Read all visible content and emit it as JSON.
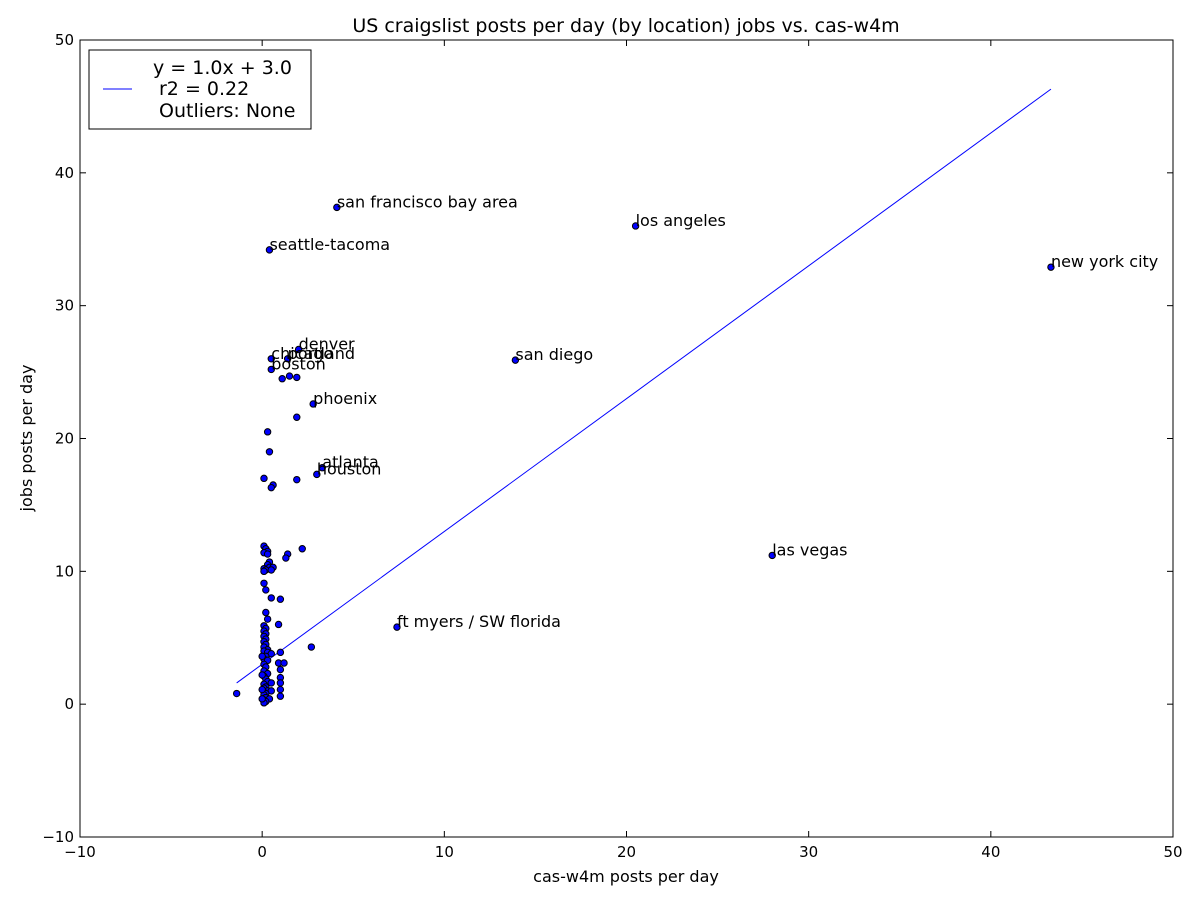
{
  "chart_data": {
    "type": "scatter",
    "title": "US craigslist posts per day (by location) jobs vs. cas-w4m",
    "xlabel": "cas-w4m posts per day",
    "ylabel": "jobs posts per day",
    "xlim": [
      -10,
      50
    ],
    "ylim": [
      -10,
      50
    ],
    "xticks": [
      -10,
      0,
      10,
      20,
      30,
      40,
      50
    ],
    "yticks": [
      -10,
      0,
      10,
      20,
      30,
      40,
      50
    ],
    "tick_labels_x": [
      "−10",
      "0",
      "10",
      "20",
      "30",
      "40",
      "50"
    ],
    "tick_labels_y": [
      "−10",
      "0",
      "10",
      "20",
      "30",
      "40",
      "50"
    ],
    "grid": false,
    "legend": {
      "placement": "top-left",
      "lines": [
        "y = 1.0x + 3.0",
        "r2 = 0.22",
        "Outliers: None"
      ]
    },
    "colors": {
      "points": "#0000ff",
      "point_edge": "#000000",
      "fit_line": "#0000ff"
    },
    "fit_line": {
      "slope": 1.0,
      "intercept": 3.0,
      "x_start": -1.4,
      "x_end": 43.3
    },
    "labeled_points": [
      {
        "label": "san francisco bay area",
        "x": 4.1,
        "y": 37.4
      },
      {
        "label": "los angeles",
        "x": 20.5,
        "y": 36.0
      },
      {
        "label": "seattle-tacoma",
        "x": 0.4,
        "y": 34.2
      },
      {
        "label": "new york city",
        "x": 43.3,
        "y": 32.9
      },
      {
        "label": "denver",
        "x": 2.0,
        "y": 26.7
      },
      {
        "label": "chicago",
        "x": 0.5,
        "y": 26.0
      },
      {
        "label": "portland",
        "x": 1.4,
        "y": 26.0
      },
      {
        "label": "san diego",
        "x": 13.9,
        "y": 25.9
      },
      {
        "label": "boston",
        "x": 0.5,
        "y": 25.2
      },
      {
        "label": "phoenix",
        "x": 2.8,
        "y": 22.6
      },
      {
        "label": "atlanta",
        "x": 3.3,
        "y": 17.8
      },
      {
        "label": "houston",
        "x": 3.0,
        "y": 17.3
      },
      {
        "label": "las vegas",
        "x": 28.0,
        "y": 11.2
      },
      {
        "label": "ft myers / SW florida",
        "x": 7.4,
        "y": 5.8
      }
    ],
    "points": [
      [
        1.5,
        24.7
      ],
      [
        1.9,
        24.6
      ],
      [
        1.1,
        24.5
      ],
      [
        1.9,
        21.6
      ],
      [
        0.3,
        20.5
      ],
      [
        0.4,
        19.0
      ],
      [
        0.1,
        17.0
      ],
      [
        1.9,
        16.9
      ],
      [
        0.6,
        16.5
      ],
      [
        0.5,
        16.3
      ],
      [
        0.1,
        11.9
      ],
      [
        0.2,
        11.7
      ],
      [
        0.3,
        11.5
      ],
      [
        0.1,
        11.4
      ],
      [
        0.3,
        11.3
      ],
      [
        1.4,
        11.3
      ],
      [
        1.3,
        11.0
      ],
      [
        2.2,
        11.7
      ],
      [
        0.4,
        10.7
      ],
      [
        0.3,
        10.5
      ],
      [
        0.4,
        10.3
      ],
      [
        0.6,
        10.3
      ],
      [
        0.1,
        10.2
      ],
      [
        0.2,
        10.1
      ],
      [
        0.1,
        10.0
      ],
      [
        0.5,
        10.1
      ],
      [
        0.1,
        9.1
      ],
      [
        0.2,
        8.6
      ],
      [
        0.5,
        8.0
      ],
      [
        1.0,
        7.9
      ],
      [
        0.2,
        6.9
      ],
      [
        0.3,
        6.4
      ],
      [
        0.9,
        6.0
      ],
      [
        0.1,
        5.9
      ],
      [
        0.2,
        5.7
      ],
      [
        0.1,
        5.5
      ],
      [
        0.2,
        5.3
      ],
      [
        0.1,
        5.1
      ],
      [
        0.2,
        4.9
      ],
      [
        0.1,
        4.7
      ],
      [
        0.2,
        4.5
      ],
      [
        0.1,
        4.3
      ],
      [
        0.3,
        4.1
      ],
      [
        0.1,
        4.0
      ],
      [
        0.3,
        3.9
      ],
      [
        1.0,
        3.9
      ],
      [
        0.5,
        3.8
      ],
      [
        0.2,
        3.6
      ],
      [
        0.1,
        3.4
      ],
      [
        0.3,
        3.3
      ],
      [
        0.9,
        3.1
      ],
      [
        1.2,
        3.1
      ],
      [
        0.1,
        3.0
      ],
      [
        0.2,
        2.8
      ],
      [
        1.0,
        2.6
      ],
      [
        0.1,
        2.5
      ],
      [
        0.3,
        2.3
      ],
      [
        0.1,
        2.1
      ],
      [
        1.0,
        2.0
      ],
      [
        0.2,
        1.9
      ],
      [
        0.3,
        1.7
      ],
      [
        0.5,
        1.6
      ],
      [
        1.0,
        1.6
      ],
      [
        0.1,
        1.5
      ],
      [
        0.2,
        1.3
      ],
      [
        0.1,
        1.2
      ],
      [
        1.0,
        1.1
      ],
      [
        0.3,
        1.0
      ],
      [
        0.5,
        1.0
      ],
      [
        0.1,
        0.9
      ],
      [
        0.2,
        0.8
      ],
      [
        0.1,
        0.7
      ],
      [
        1.0,
        0.6
      ],
      [
        0.2,
        0.5
      ],
      [
        0.4,
        0.4
      ],
      [
        0.1,
        0.3
      ],
      [
        0.2,
        0.2
      ],
      [
        0.1,
        0.1
      ],
      [
        0.0,
        3.6
      ],
      [
        0.0,
        2.2
      ],
      [
        0.0,
        1.1
      ],
      [
        0.0,
        0.4
      ],
      [
        2.7,
        4.3
      ],
      [
        -1.4,
        0.8
      ]
    ]
  }
}
